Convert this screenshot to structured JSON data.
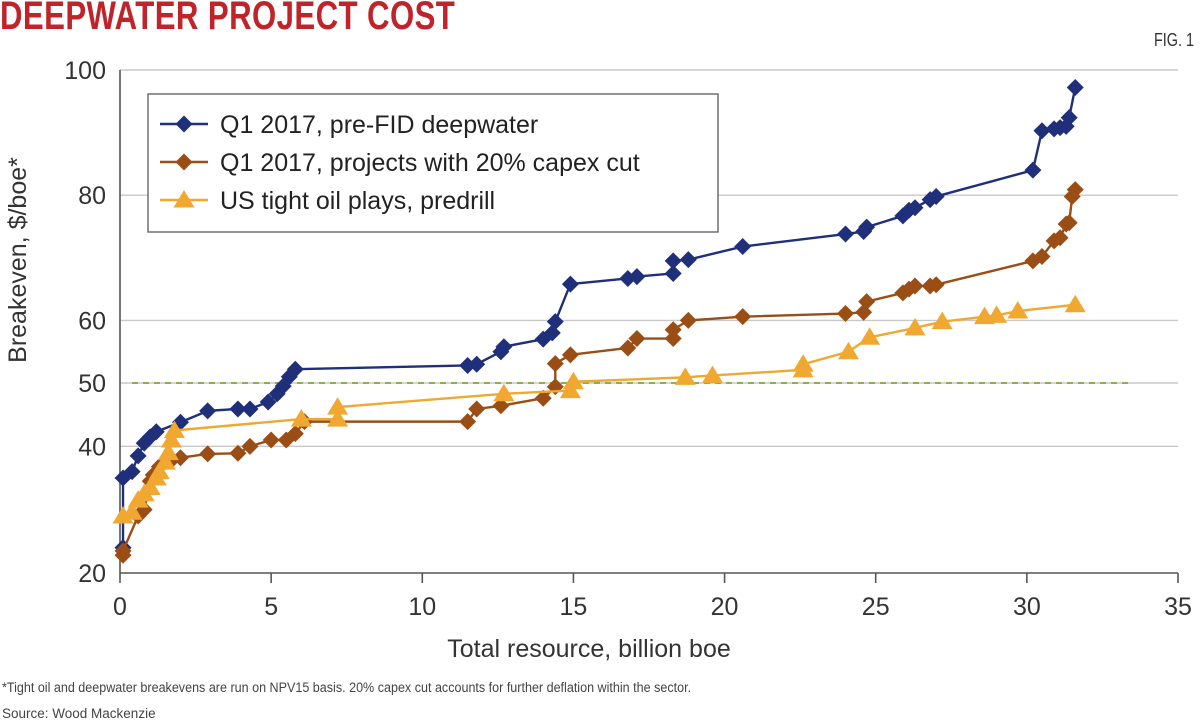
{
  "header": {
    "title": "DEEPWATER PROJECT COST",
    "fig_label": "FIG. 1"
  },
  "footer": {
    "footnote": "*Tight oil and deepwater breakevens are run on NPV15 basis. 20% capex cut accounts for further deflation within the sector.",
    "source": "Source: Wood Mackenzie"
  },
  "chart_data": {
    "type": "line",
    "title": "DEEPWATER PROJECT COST",
    "xlabel": "Total resource, billion boe",
    "ylabel": "Breakeven, $/boe*",
    "xlim": [
      0,
      35
    ],
    "ylim": [
      20,
      100
    ],
    "xticks": [
      0,
      5,
      10,
      15,
      20,
      25,
      30,
      35
    ],
    "yticks": [
      20,
      40,
      50,
      60,
      80,
      100
    ],
    "grid": "horizontal",
    "legend_position": "top-left",
    "reference_line": {
      "y": 50,
      "style": "dashed",
      "color": "#8db04a"
    },
    "series": [
      {
        "name": "Q1 2017, pre-FID deepwater",
        "color": "#1f2f7a",
        "marker": "diamond",
        "points": [
          [
            0.1,
            24
          ],
          [
            0.1,
            35
          ],
          [
            0.4,
            36
          ],
          [
            0.6,
            38.5
          ],
          [
            0.8,
            40.5
          ],
          [
            1.0,
            41.5
          ],
          [
            1.2,
            42.3
          ],
          [
            2.0,
            43.8
          ],
          [
            2.9,
            45.6
          ],
          [
            3.9,
            45.9
          ],
          [
            4.3,
            45.9
          ],
          [
            4.9,
            47
          ],
          [
            5.2,
            48.3
          ],
          [
            5.4,
            49.5
          ],
          [
            5.6,
            51
          ],
          [
            5.8,
            52.2
          ],
          [
            11.5,
            52.8
          ],
          [
            11.8,
            53
          ],
          [
            12.6,
            55
          ],
          [
            12.7,
            55.8
          ],
          [
            14.0,
            57
          ],
          [
            14.3,
            58
          ],
          [
            14.4,
            59.8
          ],
          [
            14.9,
            65.8
          ],
          [
            16.8,
            66.7
          ],
          [
            17.1,
            67
          ],
          [
            18.3,
            67.5
          ],
          [
            18.3,
            69.5
          ],
          [
            18.8,
            69.7
          ],
          [
            20.6,
            71.8
          ],
          [
            24.0,
            73.8
          ],
          [
            24.6,
            74.2
          ],
          [
            24.7,
            74.9
          ],
          [
            25.9,
            76.7
          ],
          [
            26.1,
            77.6
          ],
          [
            26.3,
            78
          ],
          [
            26.8,
            79.3
          ],
          [
            27.0,
            79.8
          ],
          [
            30.2,
            84
          ],
          [
            30.5,
            90.3
          ],
          [
            30.9,
            90.6
          ],
          [
            31.1,
            90.8
          ],
          [
            31.3,
            91
          ],
          [
            31.4,
            92.4
          ],
          [
            31.6,
            97.2
          ]
        ]
      },
      {
        "name": "Q1 2017, projects with 20% capex cut",
        "color": "#9a4e16",
        "marker": "diamond",
        "points": [
          [
            0.1,
            22.8
          ],
          [
            0.1,
            23.5
          ],
          [
            0.6,
            29
          ],
          [
            0.8,
            30
          ],
          [
            1.0,
            34.5
          ],
          [
            1.1,
            35.5
          ],
          [
            1.3,
            36.8
          ],
          [
            1.7,
            37.8
          ],
          [
            2.0,
            38.2
          ],
          [
            2.9,
            38.8
          ],
          [
            3.9,
            38.9
          ],
          [
            4.3,
            40
          ],
          [
            5.0,
            41
          ],
          [
            5.5,
            41
          ],
          [
            5.8,
            42
          ],
          [
            6.1,
            43.9
          ],
          [
            11.5,
            43.9
          ],
          [
            11.8,
            45.9
          ],
          [
            12.6,
            46.4
          ],
          [
            14.0,
            47.6
          ],
          [
            14.4,
            49.4
          ],
          [
            14.4,
            53.1
          ],
          [
            14.9,
            54.5
          ],
          [
            16.8,
            55.6
          ],
          [
            17.1,
            57.1
          ],
          [
            18.3,
            57.1
          ],
          [
            18.3,
            58.5
          ],
          [
            18.8,
            60
          ],
          [
            20.6,
            60.6
          ],
          [
            24.0,
            61.1
          ],
          [
            24.6,
            61.3
          ],
          [
            24.7,
            63
          ],
          [
            25.9,
            64.4
          ],
          [
            26.1,
            65
          ],
          [
            26.3,
            65.5
          ],
          [
            26.8,
            65.5
          ],
          [
            27.0,
            65.7
          ],
          [
            30.2,
            69.5
          ],
          [
            30.5,
            70.2
          ],
          [
            30.9,
            72.7
          ],
          [
            31.1,
            73.2
          ],
          [
            31.3,
            75.4
          ],
          [
            31.4,
            75.6
          ],
          [
            31.5,
            79.8
          ],
          [
            31.6,
            80.9
          ]
        ]
      },
      {
        "name": "US tight oil plays, predrill",
        "color": "#f0a830",
        "marker": "triangle",
        "points": [
          [
            0.1,
            29
          ],
          [
            0.4,
            29.6
          ],
          [
            0.6,
            31.5
          ],
          [
            0.8,
            32.5
          ],
          [
            1.0,
            33.5
          ],
          [
            1.2,
            35
          ],
          [
            1.3,
            36
          ],
          [
            1.5,
            37.5
          ],
          [
            1.6,
            39
          ],
          [
            1.7,
            41
          ],
          [
            1.8,
            42.5
          ],
          [
            6.0,
            44.3
          ],
          [
            7.2,
            44.3
          ],
          [
            7.2,
            46.2
          ],
          [
            12.7,
            48.3
          ],
          [
            14.9,
            48.8
          ],
          [
            15.0,
            50.2
          ],
          [
            18.7,
            50.9
          ],
          [
            19.6,
            51.2
          ],
          [
            22.6,
            52.1
          ],
          [
            22.6,
            53
          ],
          [
            24.1,
            55
          ],
          [
            24.8,
            57.3
          ],
          [
            26.3,
            58.8
          ],
          [
            27.2,
            59.8
          ],
          [
            28.6,
            60.6
          ],
          [
            29.0,
            60.8
          ],
          [
            29.7,
            61.5
          ],
          [
            31.6,
            62.5
          ]
        ]
      }
    ]
  }
}
